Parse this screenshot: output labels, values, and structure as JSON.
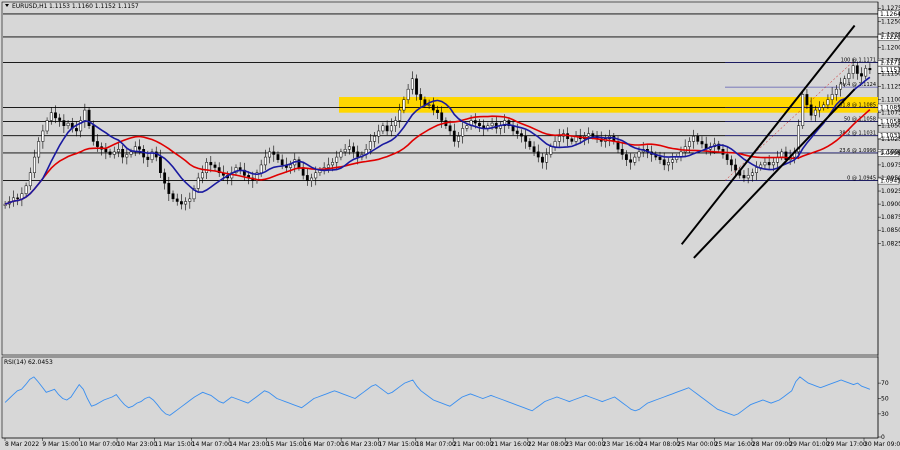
{
  "header": {
    "symbol": "EURUSD,H1",
    "ohlc": "1.1153 1.1160 1.1152 1.1157"
  },
  "rsi_header": "RSI(14) 62.0453",
  "colors": {
    "background": "#d7d7d7",
    "ma_fast": "#1a1aa0",
    "ma_slow": "#e00000",
    "rsi": "#3a8ff0",
    "zone": "#ffd700",
    "label_box": "#ffffff",
    "bull_candle": "#000000",
    "bear_candle": "#000000"
  },
  "chart_data": [
    {
      "type": "candlestick",
      "title": "EURUSD,H1",
      "ylim": [
        1.0613,
        1.1285
      ],
      "y_ticks": [
        "1.1275",
        "1.1250",
        "1.1225",
        "1.1200",
        "1.1175",
        "1.1150",
        "1.1125",
        "1.1100",
        "1.1075",
        "1.1050",
        "1.1025",
        "1.1000",
        "1.0975",
        "1.0950",
        "1.0925",
        "1.0900",
        "1.0875",
        "1.0850",
        "1.0825"
      ],
      "x_ticks": [
        "8 Mar 2022",
        "9 Mar 15:00",
        "10 Mar 07:00",
        "10 Mar 23:00",
        "11 Mar 15:00",
        "14 Mar 07:00",
        "14 Mar 23:00",
        "15 Mar 15:00",
        "16 Mar 07:00",
        "16 Mar 23:00",
        "17 Mar 15:00",
        "18 Mar 07:00",
        "21 Mar 00:00",
        "21 Mar 16:00",
        "22 Mar 08:00",
        "23 Mar 00:00",
        "23 Mar 16:00",
        "24 Mar 08:00",
        "25 Mar 00:00",
        "25 Mar 16:00",
        "28 Mar 09:00",
        "29 Mar 01:00",
        "29 Mar 17:00",
        "30 Mar 09:00"
      ],
      "horizontal_levels": [
        {
          "price": 1.1264,
          "label": "1.1264"
        },
        {
          "price": 1.122,
          "label": "1.1220"
        },
        {
          "price": 1.1171,
          "label": "1.1171"
        },
        {
          "price": 1.1085,
          "label": "1.1085"
        },
        {
          "price": 1.1058,
          "label": "1.1058"
        },
        {
          "price": 1.1031,
          "label": "1.1031"
        },
        {
          "price": 1.0998,
          "label": "1.0998"
        },
        {
          "price": 1.0945,
          "label": "1.0945"
        }
      ],
      "current_price": {
        "price": 1.1157,
        "label": "1.1157"
      },
      "fibonacci": [
        {
          "label": "100 @ 1.1171",
          "price": 1.1171
        },
        {
          "label": "76.4 @ 1.1124",
          "price": 1.1124
        },
        {
          "label": "61.8 @ 1.1085",
          "price": 1.1085
        },
        {
          "label": "50 @ 1.1058",
          "price": 1.1058
        },
        {
          "label": "38.2 @ 1.1031",
          "price": 1.1031
        },
        {
          "label": "23.6 @ 1.0998",
          "price": 1.0998
        },
        {
          "label": "0 @ 1.0945",
          "price": 1.0945
        }
      ],
      "zone": {
        "from": 1.1075,
        "to": 1.1105
      },
      "trend_channel": [
        {
          "x1": 0.781,
          "y1": 1.0823,
          "x2": 0.98,
          "y2": 1.1242
        },
        {
          "x1": 0.795,
          "y1": 1.0797,
          "x2": 0.98,
          "y2": 1.112
        }
      ],
      "close": [
        1.09,
        1.0905,
        1.0912,
        1.091,
        1.092,
        1.0935,
        1.096,
        1.099,
        1.102,
        1.104,
        1.106,
        1.1075,
        1.1065,
        1.106,
        1.105,
        1.1055,
        1.1045,
        1.104,
        1.106,
        1.108,
        1.105,
        1.102,
        1.101,
        1.1005,
        1.1,
        1.0995,
        1.1,
        1.1005,
        1.099,
        1.0995,
        1.1,
        1.101,
        1.1005,
        1.099,
        1.0985,
        1.1,
        1.099,
        1.096,
        1.094,
        1.092,
        1.091,
        1.0905,
        1.09,
        1.0905,
        1.091,
        1.093,
        1.095,
        1.096,
        1.098,
        1.0975,
        1.097,
        1.096,
        1.0955,
        1.095,
        1.096,
        1.097,
        1.0965,
        1.0955,
        1.095,
        1.0945,
        1.096,
        1.0975,
        1.099,
        1.1,
        1.0995,
        1.0985,
        1.0975,
        1.097,
        1.0975,
        1.0985,
        1.097,
        1.0955,
        1.0945,
        1.095,
        1.096,
        1.0965,
        1.097,
        1.0975,
        1.098,
        1.099,
        1.1,
        1.1005,
        1.101,
        1.1,
        1.099,
        1.0995,
        1.1005,
        1.102,
        1.103,
        1.104,
        1.105,
        1.104,
        1.105,
        1.106,
        1.108,
        1.11,
        1.112,
        1.114,
        1.111,
        1.11,
        1.109,
        1.109,
        1.108,
        1.1075,
        1.106,
        1.105,
        1.104,
        1.102,
        1.103,
        1.1045,
        1.105,
        1.106,
        1.1055,
        1.105,
        1.1045,
        1.105,
        1.1055,
        1.1045,
        1.105,
        1.106,
        1.105,
        1.104,
        1.1035,
        1.103,
        1.102,
        1.101,
        1.1,
        1.099,
        1.098,
        1.0995,
        1.101,
        1.102,
        1.103,
        1.1035,
        1.1025,
        1.102,
        1.103,
        1.1025,
        1.103,
        1.1035,
        1.103,
        1.1025,
        1.102,
        1.1025,
        1.103,
        1.102,
        1.1005,
        1.0995,
        1.0985,
        1.098,
        1.099,
        1.1,
        1.1005,
        1.1,
        1.0995,
        1.099,
        1.0985,
        1.0975,
        1.098,
        1.0985,
        1.099,
        1.1,
        1.101,
        1.102,
        1.103,
        1.102,
        1.1015,
        1.1005,
        1.101,
        1.1015,
        1.1005,
        1.0995,
        1.0985,
        1.0975,
        1.0965,
        1.0955,
        1.095,
        1.0955,
        1.096,
        1.097,
        1.0975,
        1.098,
        1.0975,
        1.098,
        1.099,
        1.1,
        1.0985,
        1.099,
        1.1,
        1.105,
        1.111,
        1.109,
        1.107,
        1.108,
        1.1085,
        1.109,
        1.11,
        1.111,
        1.112,
        1.113,
        1.114,
        1.115,
        1.1165,
        1.115,
        1.1145,
        1.116,
        1.1157
      ]
    },
    {
      "type": "line",
      "title": "RSI(14) 62.0453",
      "ylim": [
        0,
        100
      ],
      "y_ticks": [
        "70",
        "50",
        "30",
        "0"
      ],
      "values": [
        45,
        50,
        55,
        60,
        62,
        68,
        75,
        78,
        72,
        65,
        58,
        60,
        62,
        55,
        50,
        48,
        52,
        60,
        68,
        62,
        50,
        40,
        42,
        45,
        48,
        50,
        52,
        55,
        48,
        42,
        38,
        40,
        44,
        46,
        50,
        52,
        48,
        42,
        35,
        30,
        28,
        32,
        36,
        40,
        44,
        48,
        52,
        55,
        58,
        56,
        54,
        50,
        46,
        44,
        48,
        52,
        50,
        48,
        46,
        44,
        48,
        52,
        56,
        60,
        58,
        54,
        50,
        48,
        46,
        44,
        42,
        40,
        38,
        42,
        46,
        50,
        52,
        54,
        56,
        58,
        60,
        58,
        56,
        54,
        52,
        50,
        54,
        58,
        62,
        66,
        68,
        64,
        60,
        56,
        58,
        62,
        66,
        70,
        72,
        74,
        66,
        60,
        56,
        52,
        48,
        46,
        44,
        42,
        40,
        44,
        48,
        52,
        54,
        56,
        54,
        52,
        50,
        52,
        54,
        52,
        50,
        48,
        46,
        44,
        42,
        40,
        38,
        36,
        34,
        38,
        42,
        46,
        48,
        50,
        52,
        50,
        48,
        46,
        48,
        50,
        52,
        54,
        52,
        50,
        48,
        46,
        48,
        50,
        52,
        48,
        44,
        40,
        36,
        34,
        36,
        40,
        44,
        46,
        48,
        50,
        52,
        54,
        56,
        58,
        60,
        62,
        64,
        60,
        56,
        52,
        48,
        44,
        40,
        36,
        34,
        32,
        30,
        28,
        30,
        34,
        38,
        42,
        44,
        46,
        48,
        46,
        44,
        46,
        48,
        52,
        56,
        60,
        72,
        78,
        74,
        70,
        68,
        66,
        64,
        66,
        68,
        70,
        72,
        74,
        72,
        70,
        68,
        70,
        66,
        64,
        62
      ]
    }
  ]
}
